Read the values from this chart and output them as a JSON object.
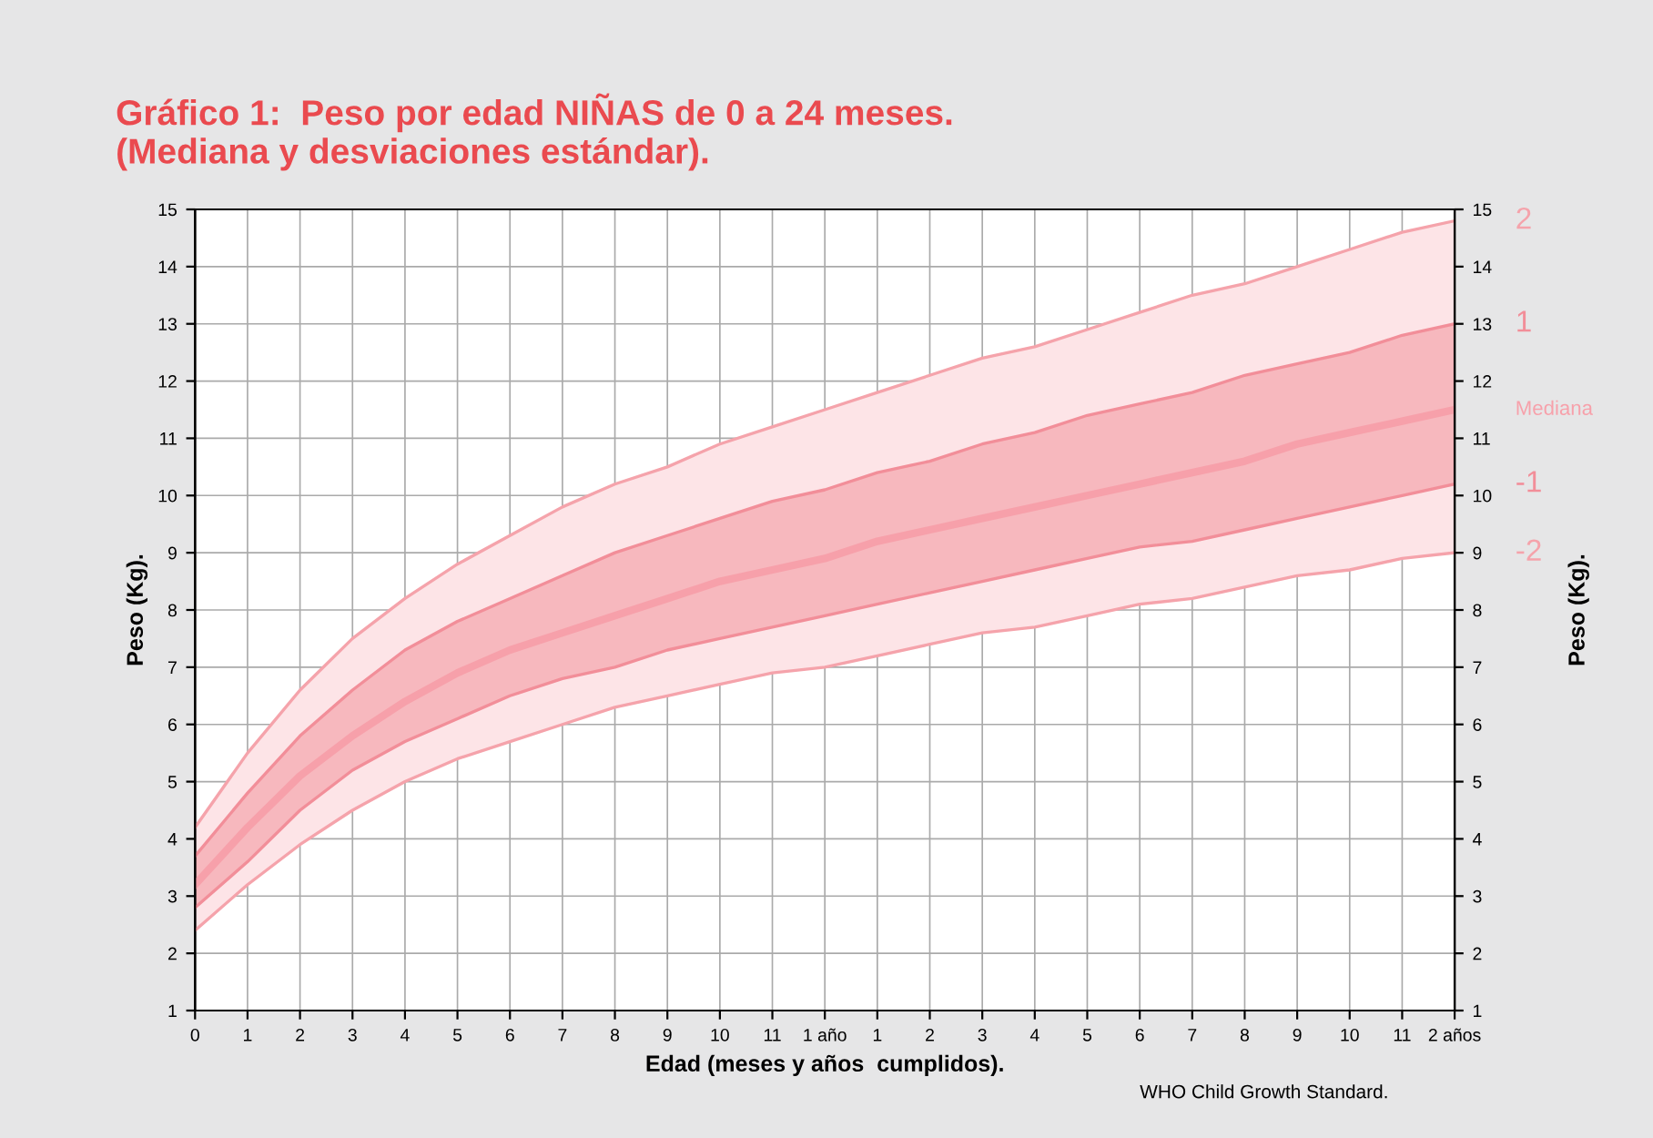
{
  "chart_data": {
    "type": "line",
    "title": "Gráfico 1:  Peso por edad NIÑAS de 0 a 24 meses.\n(Mediana y desviaciones estándar).",
    "xlabel": "Edad (meses y años  cumplidos).",
    "ylabel": "Peso (Kg).",
    "y2label": "Peso (Kg).",
    "categories": [
      "0",
      "1",
      "2",
      "3",
      "4",
      "5",
      "6",
      "7",
      "8",
      "9",
      "10",
      "11",
      "1 año",
      "1",
      "2",
      "3",
      "4",
      "5",
      "6",
      "7",
      "8",
      "9",
      "10",
      "11",
      "2 años"
    ],
    "series": [
      {
        "name": "2",
        "color": "#f5a3ab",
        "values": [
          4.2,
          5.5,
          6.6,
          7.5,
          8.2,
          8.8,
          9.3,
          9.8,
          10.2,
          10.5,
          10.9,
          11.2,
          11.5,
          11.8,
          12.1,
          12.4,
          12.6,
          12.9,
          13.2,
          13.5,
          13.7,
          14.0,
          14.3,
          14.6,
          14.8
        ],
        "lower": [
          2.4,
          3.2,
          3.9,
          4.5,
          5.0,
          5.4,
          5.7,
          6.0,
          6.3,
          6.5,
          6.7,
          6.9,
          7.0,
          7.2,
          7.4,
          7.6,
          7.7,
          7.9,
          8.1,
          8.2,
          8.4,
          8.6,
          8.7,
          8.9,
          9.0
        ],
        "upper": [
          4.2,
          5.5,
          6.6,
          7.5,
          8.2,
          8.8,
          9.3,
          9.8,
          10.2,
          10.5,
          10.9,
          11.2,
          11.5,
          11.8,
          12.1,
          12.4,
          12.6,
          12.9,
          13.2,
          13.5,
          13.7,
          14.0,
          14.3,
          14.6,
          14.8
        ]
      },
      {
        "name": "1",
        "color": "#f28e99",
        "values": [
          3.7,
          4.8,
          5.8,
          6.6,
          7.3,
          7.8,
          8.2,
          8.6,
          9.0,
          9.3,
          9.6,
          9.9,
          10.1,
          10.4,
          10.6,
          10.9,
          11.1,
          11.4,
          11.6,
          11.8,
          12.1,
          12.3,
          12.5,
          12.8,
          13.0
        ]
      },
      {
        "name": "Mediana",
        "color": "#f7a0aa",
        "values": [
          3.2,
          4.2,
          5.1,
          5.8,
          6.4,
          6.9,
          7.3,
          7.6,
          7.9,
          8.2,
          8.5,
          8.7,
          8.9,
          9.2,
          9.4,
          9.6,
          9.8,
          10.0,
          10.2,
          10.4,
          10.6,
          10.9,
          11.1,
          11.3,
          11.5
        ],
        "lower": [
          2.8,
          3.6,
          4.5,
          5.2,
          5.7,
          6.1,
          6.5,
          6.8,
          7.0,
          7.3,
          7.5,
          7.7,
          7.9,
          8.1,
          8.3,
          8.5,
          8.7,
          8.9,
          9.1,
          9.2,
          9.4,
          9.6,
          9.8,
          10.0,
          10.2
        ],
        "upper": [
          3.7,
          4.8,
          5.8,
          6.6,
          7.3,
          7.8,
          8.2,
          8.6,
          9.0,
          9.3,
          9.6,
          9.9,
          10.1,
          10.4,
          10.6,
          10.9,
          11.1,
          11.4,
          11.6,
          11.8,
          12.1,
          12.3,
          12.5,
          12.8,
          13.0
        ]
      },
      {
        "name": "-1",
        "color": "#f28e99",
        "values": [
          2.8,
          3.6,
          4.5,
          5.2,
          5.7,
          6.1,
          6.5,
          6.8,
          7.0,
          7.3,
          7.5,
          7.7,
          7.9,
          8.1,
          8.3,
          8.5,
          8.7,
          8.9,
          9.1,
          9.2,
          9.4,
          9.6,
          9.8,
          10.0,
          10.2
        ]
      },
      {
        "name": "-2",
        "color": "#f5a3ab",
        "values": [
          2.4,
          3.2,
          3.9,
          4.5,
          5.0,
          5.4,
          5.7,
          6.0,
          6.3,
          6.5,
          6.7,
          6.9,
          7.0,
          7.2,
          7.4,
          7.6,
          7.7,
          7.9,
          8.1,
          8.2,
          8.4,
          8.6,
          8.7,
          8.9,
          9.0
        ]
      }
    ],
    "ylim": [
      1,
      15
    ],
    "yticks": [
      1,
      2,
      3,
      4,
      5,
      6,
      7,
      8,
      9,
      10,
      11,
      12,
      13,
      14,
      15
    ],
    "y2lim": [
      1,
      15
    ],
    "y2ticks": [
      1,
      2,
      3,
      4,
      5,
      6,
      7,
      8,
      9,
      10,
      11,
      12,
      13,
      14,
      15
    ],
    "grid": true,
    "legend": false,
    "marker": "none",
    "line_style": "solid",
    "annotations": [
      "WHO Child Growth Standard."
    ]
  }
}
